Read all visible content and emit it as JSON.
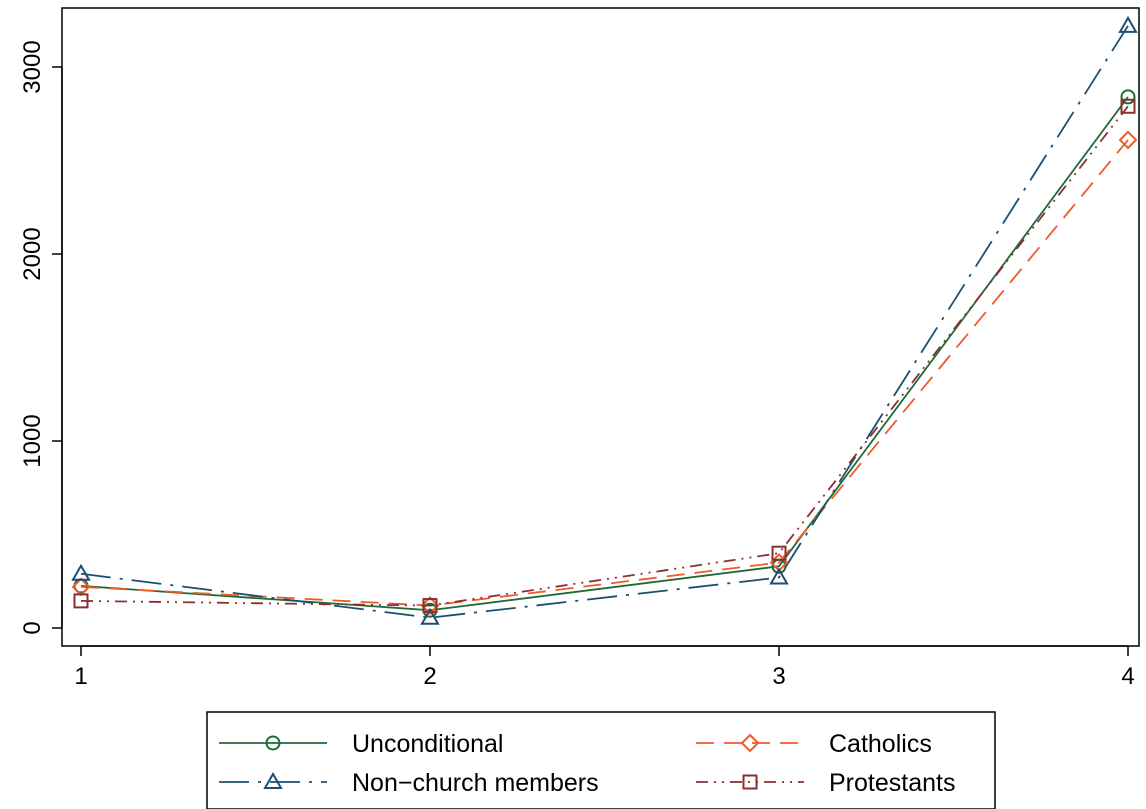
{
  "chart_data": {
    "type": "line",
    "title": "",
    "xlabel": "",
    "ylabel": "",
    "x": [
      1,
      2,
      3,
      4
    ],
    "xticks": [
      "1",
      "2",
      "3",
      "4"
    ],
    "yticks": [
      "0",
      "1000",
      "2000",
      "3000"
    ],
    "xlim": [
      1,
      4
    ],
    "ylim": [
      -70,
      3320
    ],
    "grid": false,
    "legend_position": "bottom",
    "series": [
      {
        "name": "Unconditional",
        "values": [
          225,
          95,
          330,
          2840
        ],
        "color": "#1e6b3a",
        "marker": "circle",
        "dash": "solid"
      },
      {
        "name": "Catholics",
        "values": [
          220,
          120,
          350,
          2610
        ],
        "color": "#f05a28",
        "marker": "diamond",
        "dash": "dashed"
      },
      {
        "name": "Non−church members",
        "values": [
          290,
          55,
          270,
          3220
        ],
        "color": "#1b4f72",
        "marker": "triangle",
        "dash": "longdashdot"
      },
      {
        "name": "Protestants",
        "values": [
          145,
          120,
          400,
          2790
        ],
        "color": "#8b2f2f",
        "marker": "square",
        "dash": "dashdotdot"
      }
    ]
  }
}
